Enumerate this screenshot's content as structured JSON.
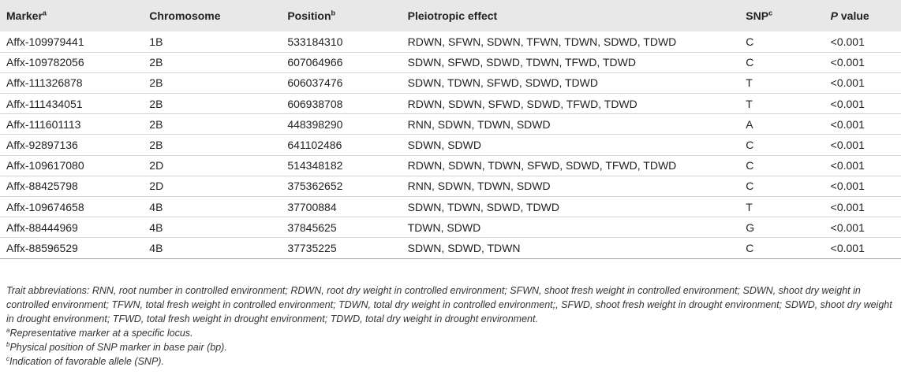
{
  "table": {
    "headers": {
      "marker": "Marker",
      "marker_sup": "a",
      "chromosome": "Chromosome",
      "position": "Position",
      "position_sup": "b",
      "effect": "Pleiotropic effect",
      "snp": "SNP",
      "snp_sup": "c",
      "p_italic": "P",
      "p_rest": " value"
    },
    "rows": [
      {
        "marker": "Affx-109979441",
        "chromosome": "1B",
        "position": "533184310",
        "effect": "RDWN, SFWN, SDWN, TFWN, TDWN, SDWD, TDWD",
        "snp": "C",
        "p": "<0.001"
      },
      {
        "marker": "Affx-109782056",
        "chromosome": "2B",
        "position": "607064966",
        "effect": "SDWN, SFWD, SDWD, TDWN, TFWD, TDWD",
        "snp": "C",
        "p": "<0.001"
      },
      {
        "marker": "Affx-111326878",
        "chromosome": "2B",
        "position": "606037476",
        "effect": "SDWN, TDWN, SFWD, SDWD, TDWD",
        "snp": "T",
        "p": "<0.001"
      },
      {
        "marker": "Affx-111434051",
        "chromosome": "2B",
        "position": "606938708",
        "effect": "RDWN, SDWN, SFWD, SDWD, TFWD, TDWD",
        "snp": "T",
        "p": "<0.001"
      },
      {
        "marker": "Affx-111601113",
        "chromosome": "2B",
        "position": "448398290",
        "effect": "RNN, SDWN, TDWN, SDWD",
        "snp": "A",
        "p": "<0.001"
      },
      {
        "marker": "Affx-92897136",
        "chromosome": "2B",
        "position": "641102486",
        "effect": "SDWN, SDWD",
        "snp": "C",
        "p": "<0.001"
      },
      {
        "marker": "Affx-109617080",
        "chromosome": "2D",
        "position": "514348182",
        "effect": "RDWN, SDWN, TDWN, SFWD, SDWD, TFWD, TDWD",
        "snp": "C",
        "p": "<0.001"
      },
      {
        "marker": "Affx-88425798",
        "chromosome": "2D",
        "position": "375362652",
        "effect": "RNN, SDWN, TDWN, SDWD",
        "snp": "C",
        "p": "<0.001"
      },
      {
        "marker": "Affx-109674658",
        "chromosome": "4B",
        "position": "37700884",
        "effect": "SDWN, TDWN, SDWD, TDWD",
        "snp": "T",
        "p": "<0.001"
      },
      {
        "marker": "Affx-88444969",
        "chromosome": "4B",
        "position": "37845625",
        "effect": "TDWN, SDWD",
        "snp": "G",
        "p": "<0.001"
      },
      {
        "marker": "Affx-88596529",
        "chromosome": "4B",
        "position": "37735225",
        "effect": "SDWN, SDWD, TDWN",
        "snp": "C",
        "p": "<0.001"
      }
    ]
  },
  "footnotes": {
    "abbreviations": "Trait abbreviations: RNN, root number in controlled environment; RDWN, root dry weight in controlled environment; SFWN, shoot fresh weight in controlled environment; SDWN, shoot dry weight in controlled environment; TFWN, total fresh weight in controlled environment; TDWN, total dry weight in controlled environment;, SFWD, shoot fresh weight in drought environment; SDWD, shoot dry weight in drought environment; TFWD, total fresh weight in drought environment; TDWD, total dry weight in drought environment.",
    "notes": [
      {
        "mark": "a",
        "text": "Representative marker at a specific locus."
      },
      {
        "mark": "b",
        "text": "Physical position of SNP marker in base pair (bp)."
      },
      {
        "mark": "c",
        "text": "Indication of favorable allele (SNP)."
      }
    ]
  }
}
